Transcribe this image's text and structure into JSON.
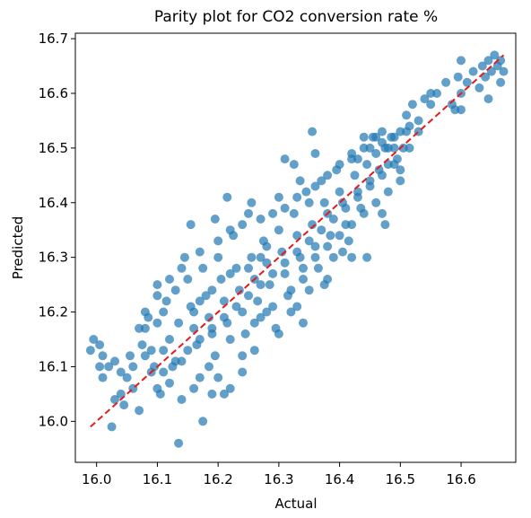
{
  "chart_data": {
    "type": "scatter",
    "title": "Parity plot for CO2 conversion rate %",
    "xlabel": "Actual",
    "ylabel": "Predicted",
    "xlim": [
      15.965,
      16.69
    ],
    "ylim": [
      15.925,
      16.71
    ],
    "xticks": [
      16.0,
      16.1,
      16.2,
      16.3,
      16.4,
      16.5,
      16.6
    ],
    "yticks": [
      16.0,
      16.1,
      16.2,
      16.3,
      16.4,
      16.5,
      16.6,
      16.7
    ],
    "xtick_labels": [
      "16.0",
      "16.1",
      "16.2",
      "16.3",
      "16.4",
      "16.5",
      "16.6"
    ],
    "ytick_labels": [
      "16.0",
      "16.1",
      "16.2",
      "16.3",
      "16.4",
      "16.5",
      "16.6",
      "16.7"
    ],
    "grid": false,
    "marker_color": "#1f77b4",
    "marker_alpha": 0.7,
    "parity_line": {
      "from": [
        15.99,
        15.99
      ],
      "to": [
        16.67,
        16.67
      ],
      "color": "#e41a1c",
      "style": "dashed"
    },
    "points": [
      [
        15.99,
        16.13
      ],
      [
        15.995,
        16.15
      ],
      [
        16.005,
        16.14
      ],
      [
        16.01,
        16.12
      ],
      [
        16.005,
        16.1
      ],
      [
        16.01,
        16.08
      ],
      [
        16.02,
        16.1
      ],
      [
        16.03,
        16.11
      ],
      [
        16.025,
        15.99
      ],
      [
        16.04,
        16.09
      ],
      [
        16.03,
        16.04
      ],
      [
        16.04,
        16.05
      ],
      [
        16.045,
        16.03
      ],
      [
        16.05,
        16.08
      ],
      [
        16.06,
        16.1
      ],
      [
        16.055,
        16.12
      ],
      [
        16.06,
        16.06
      ],
      [
        16.07,
        16.02
      ],
      [
        16.075,
        16.14
      ],
      [
        16.08,
        16.17
      ],
      [
        16.085,
        16.19
      ],
      [
        16.09,
        16.13
      ],
      [
        16.095,
        16.1
      ],
      [
        16.1,
        16.18
      ],
      [
        16.1,
        16.06
      ],
      [
        16.105,
        16.05
      ],
      [
        16.11,
        16.2
      ],
      [
        16.115,
        16.22
      ],
      [
        16.12,
        16.15
      ],
      [
        16.125,
        16.1
      ],
      [
        16.13,
        16.24
      ],
      [
        16.135,
        16.18
      ],
      [
        16.14,
        16.11
      ],
      [
        16.145,
        16.3
      ],
      [
        16.15,
        16.26
      ],
      [
        16.155,
        16.21
      ],
      [
        16.16,
        16.17
      ],
      [
        16.165,
        16.14
      ],
      [
        16.17,
        16.08
      ],
      [
        16.175,
        16.28
      ],
      [
        16.18,
        16.23
      ],
      [
        16.185,
        16.19
      ],
      [
        16.19,
        16.16
      ],
      [
        16.195,
        16.12
      ],
      [
        16.2,
        16.3
      ],
      [
        16.205,
        16.26
      ],
      [
        16.21,
        16.22
      ],
      [
        16.215,
        16.18
      ],
      [
        16.22,
        16.15
      ],
      [
        16.225,
        16.34
      ],
      [
        16.23,
        16.28
      ],
      [
        16.235,
        16.24
      ],
      [
        16.24,
        16.2
      ],
      [
        16.245,
        16.16
      ],
      [
        16.25,
        16.38
      ],
      [
        16.255,
        16.3
      ],
      [
        16.26,
        16.26
      ],
      [
        16.265,
        16.22
      ],
      [
        16.27,
        16.19
      ],
      [
        16.275,
        16.33
      ],
      [
        16.28,
        16.29
      ],
      [
        16.285,
        16.25
      ],
      [
        16.29,
        16.21
      ],
      [
        16.295,
        16.17
      ],
      [
        16.3,
        16.35
      ],
      [
        16.305,
        16.31
      ],
      [
        16.31,
        16.27
      ],
      [
        16.315,
        16.23
      ],
      [
        16.32,
        16.2
      ],
      [
        16.325,
        16.38
      ],
      [
        16.33,
        16.34
      ],
      [
        16.335,
        16.3
      ],
      [
        16.34,
        16.26
      ],
      [
        16.345,
        16.42
      ],
      [
        16.35,
        16.4
      ],
      [
        16.355,
        16.36
      ],
      [
        16.36,
        16.32
      ],
      [
        16.365,
        16.28
      ],
      [
        16.37,
        16.44
      ],
      [
        16.375,
        16.4
      ],
      [
        16.38,
        16.38
      ],
      [
        16.385,
        16.34
      ],
      [
        16.39,
        16.3
      ],
      [
        16.395,
        16.46
      ],
      [
        16.4,
        16.42
      ],
      [
        16.405,
        16.4
      ],
      [
        16.41,
        16.36
      ],
      [
        16.415,
        16.33
      ],
      [
        16.42,
        16.48
      ],
      [
        16.425,
        16.45
      ],
      [
        16.43,
        16.42
      ],
      [
        16.435,
        16.39
      ],
      [
        16.44,
        16.5
      ],
      [
        16.445,
        16.47
      ],
      [
        16.45,
        16.44
      ],
      [
        16.455,
        16.52
      ],
      [
        16.46,
        16.49
      ],
      [
        16.465,
        16.46
      ],
      [
        16.47,
        16.53
      ],
      [
        16.475,
        16.5
      ],
      [
        16.48,
        16.47
      ],
      [
        16.485,
        16.52
      ],
      [
        16.49,
        16.5
      ],
      [
        16.495,
        16.48
      ],
      [
        16.5,
        16.53
      ],
      [
        16.505,
        16.5
      ],
      [
        16.51,
        16.56
      ],
      [
        16.515,
        16.54
      ],
      [
        16.52,
        16.58
      ],
      [
        16.53,
        16.55
      ],
      [
        16.54,
        16.59
      ],
      [
        16.55,
        16.6
      ],
      [
        16.56,
        16.6
      ],
      [
        16.575,
        16.62
      ],
      [
        16.585,
        16.58
      ],
      [
        16.59,
        16.57
      ],
      [
        16.595,
        16.63
      ],
      [
        16.6,
        16.66
      ],
      [
        16.61,
        16.62
      ],
      [
        16.62,
        16.64
      ],
      [
        16.63,
        16.61
      ],
      [
        16.635,
        16.65
      ],
      [
        16.64,
        16.63
      ],
      [
        16.645,
        16.66
      ],
      [
        16.65,
        16.64
      ],
      [
        16.655,
        16.67
      ],
      [
        16.66,
        16.65
      ],
      [
        16.665,
        16.66
      ],
      [
        16.67,
        16.64
      ],
      [
        16.135,
        15.96
      ],
      [
        16.175,
        16.0
      ],
      [
        16.1,
        16.25
      ],
      [
        16.155,
        16.36
      ],
      [
        16.195,
        16.37
      ],
      [
        16.215,
        16.41
      ],
      [
        16.255,
        16.4
      ],
      [
        16.3,
        16.41
      ],
      [
        16.31,
        16.48
      ],
      [
        16.325,
        16.47
      ],
      [
        16.335,
        16.44
      ],
      [
        16.355,
        16.53
      ],
      [
        16.36,
        16.49
      ],
      [
        16.375,
        16.25
      ],
      [
        16.38,
        16.26
      ],
      [
        16.405,
        16.31
      ],
      [
        16.42,
        16.3
      ],
      [
        16.445,
        16.3
      ],
      [
        16.475,
        16.36
      ],
      [
        16.47,
        16.38
      ],
      [
        16.5,
        16.44
      ],
      [
        16.515,
        16.5
      ],
      [
        16.53,
        16.53
      ],
      [
        16.55,
        16.58
      ],
      [
        16.6,
        16.57
      ],
      [
        16.6,
        16.6
      ],
      [
        16.645,
        16.59
      ],
      [
        16.665,
        16.62
      ],
      [
        16.3,
        16.16
      ],
      [
        16.33,
        16.21
      ],
      [
        16.34,
        16.18
      ],
      [
        16.35,
        16.24
      ],
      [
        16.26,
        16.13
      ],
      [
        16.24,
        16.09
      ],
      [
        16.22,
        16.06
      ],
      [
        16.2,
        16.08
      ],
      [
        16.21,
        16.05
      ],
      [
        16.185,
        16.1
      ],
      [
        16.19,
        16.05
      ],
      [
        16.16,
        16.06
      ],
      [
        16.14,
        16.04
      ],
      [
        16.12,
        16.07
      ],
      [
        16.11,
        16.09
      ],
      [
        16.09,
        16.09
      ],
      [
        16.08,
        16.12
      ],
      [
        16.07,
        16.17
      ],
      [
        16.08,
        16.2
      ],
      [
        16.1,
        16.23
      ],
      [
        16.12,
        16.26
      ],
      [
        16.14,
        16.28
      ],
      [
        16.17,
        16.31
      ],
      [
        16.2,
        16.33
      ],
      [
        16.22,
        16.35
      ],
      [
        16.24,
        16.36
      ],
      [
        16.27,
        16.37
      ],
      [
        16.29,
        16.38
      ],
      [
        16.31,
        16.39
      ],
      [
        16.33,
        16.41
      ],
      [
        16.36,
        16.43
      ],
      [
        16.38,
        16.45
      ],
      [
        16.4,
        16.47
      ],
      [
        16.42,
        16.49
      ],
      [
        16.44,
        16.52
      ],
      [
        16.46,
        16.52
      ],
      [
        16.48,
        16.5
      ],
      [
        16.39,
        16.37
      ],
      [
        16.41,
        16.39
      ],
      [
        16.43,
        16.41
      ],
      [
        16.45,
        16.43
      ],
      [
        16.47,
        16.45
      ],
      [
        16.49,
        16.47
      ],
      [
        16.37,
        16.35
      ],
      [
        16.35,
        16.33
      ],
      [
        16.33,
        16.31
      ],
      [
        16.31,
        16.29
      ],
      [
        16.29,
        16.27
      ],
      [
        16.27,
        16.25
      ],
      [
        16.25,
        16.23
      ],
      [
        16.23,
        16.21
      ],
      [
        16.21,
        16.19
      ],
      [
        16.19,
        16.17
      ],
      [
        16.17,
        16.15
      ],
      [
        16.15,
        16.13
      ],
      [
        16.13,
        16.11
      ],
      [
        16.11,
        16.13
      ],
      [
        16.25,
        16.28
      ],
      [
        16.27,
        16.3
      ],
      [
        16.28,
        16.32
      ],
      [
        16.22,
        16.27
      ],
      [
        16.19,
        16.24
      ],
      [
        16.17,
        16.22
      ],
      [
        16.16,
        16.2
      ],
      [
        16.24,
        16.12
      ],
      [
        16.26,
        16.18
      ],
      [
        16.28,
        16.2
      ],
      [
        16.32,
        16.24
      ],
      [
        16.34,
        16.28
      ],
      [
        16.36,
        16.3
      ],
      [
        16.38,
        16.32
      ],
      [
        16.4,
        16.34
      ],
      [
        16.42,
        16.36
      ],
      [
        16.44,
        16.38
      ],
      [
        16.46,
        16.4
      ],
      [
        16.48,
        16.42
      ],
      [
        16.5,
        16.46
      ],
      [
        16.43,
        16.48
      ],
      [
        16.45,
        16.5
      ],
      [
        16.47,
        16.51
      ],
      [
        16.49,
        16.52
      ],
      [
        16.51,
        16.53
      ]
    ]
  }
}
